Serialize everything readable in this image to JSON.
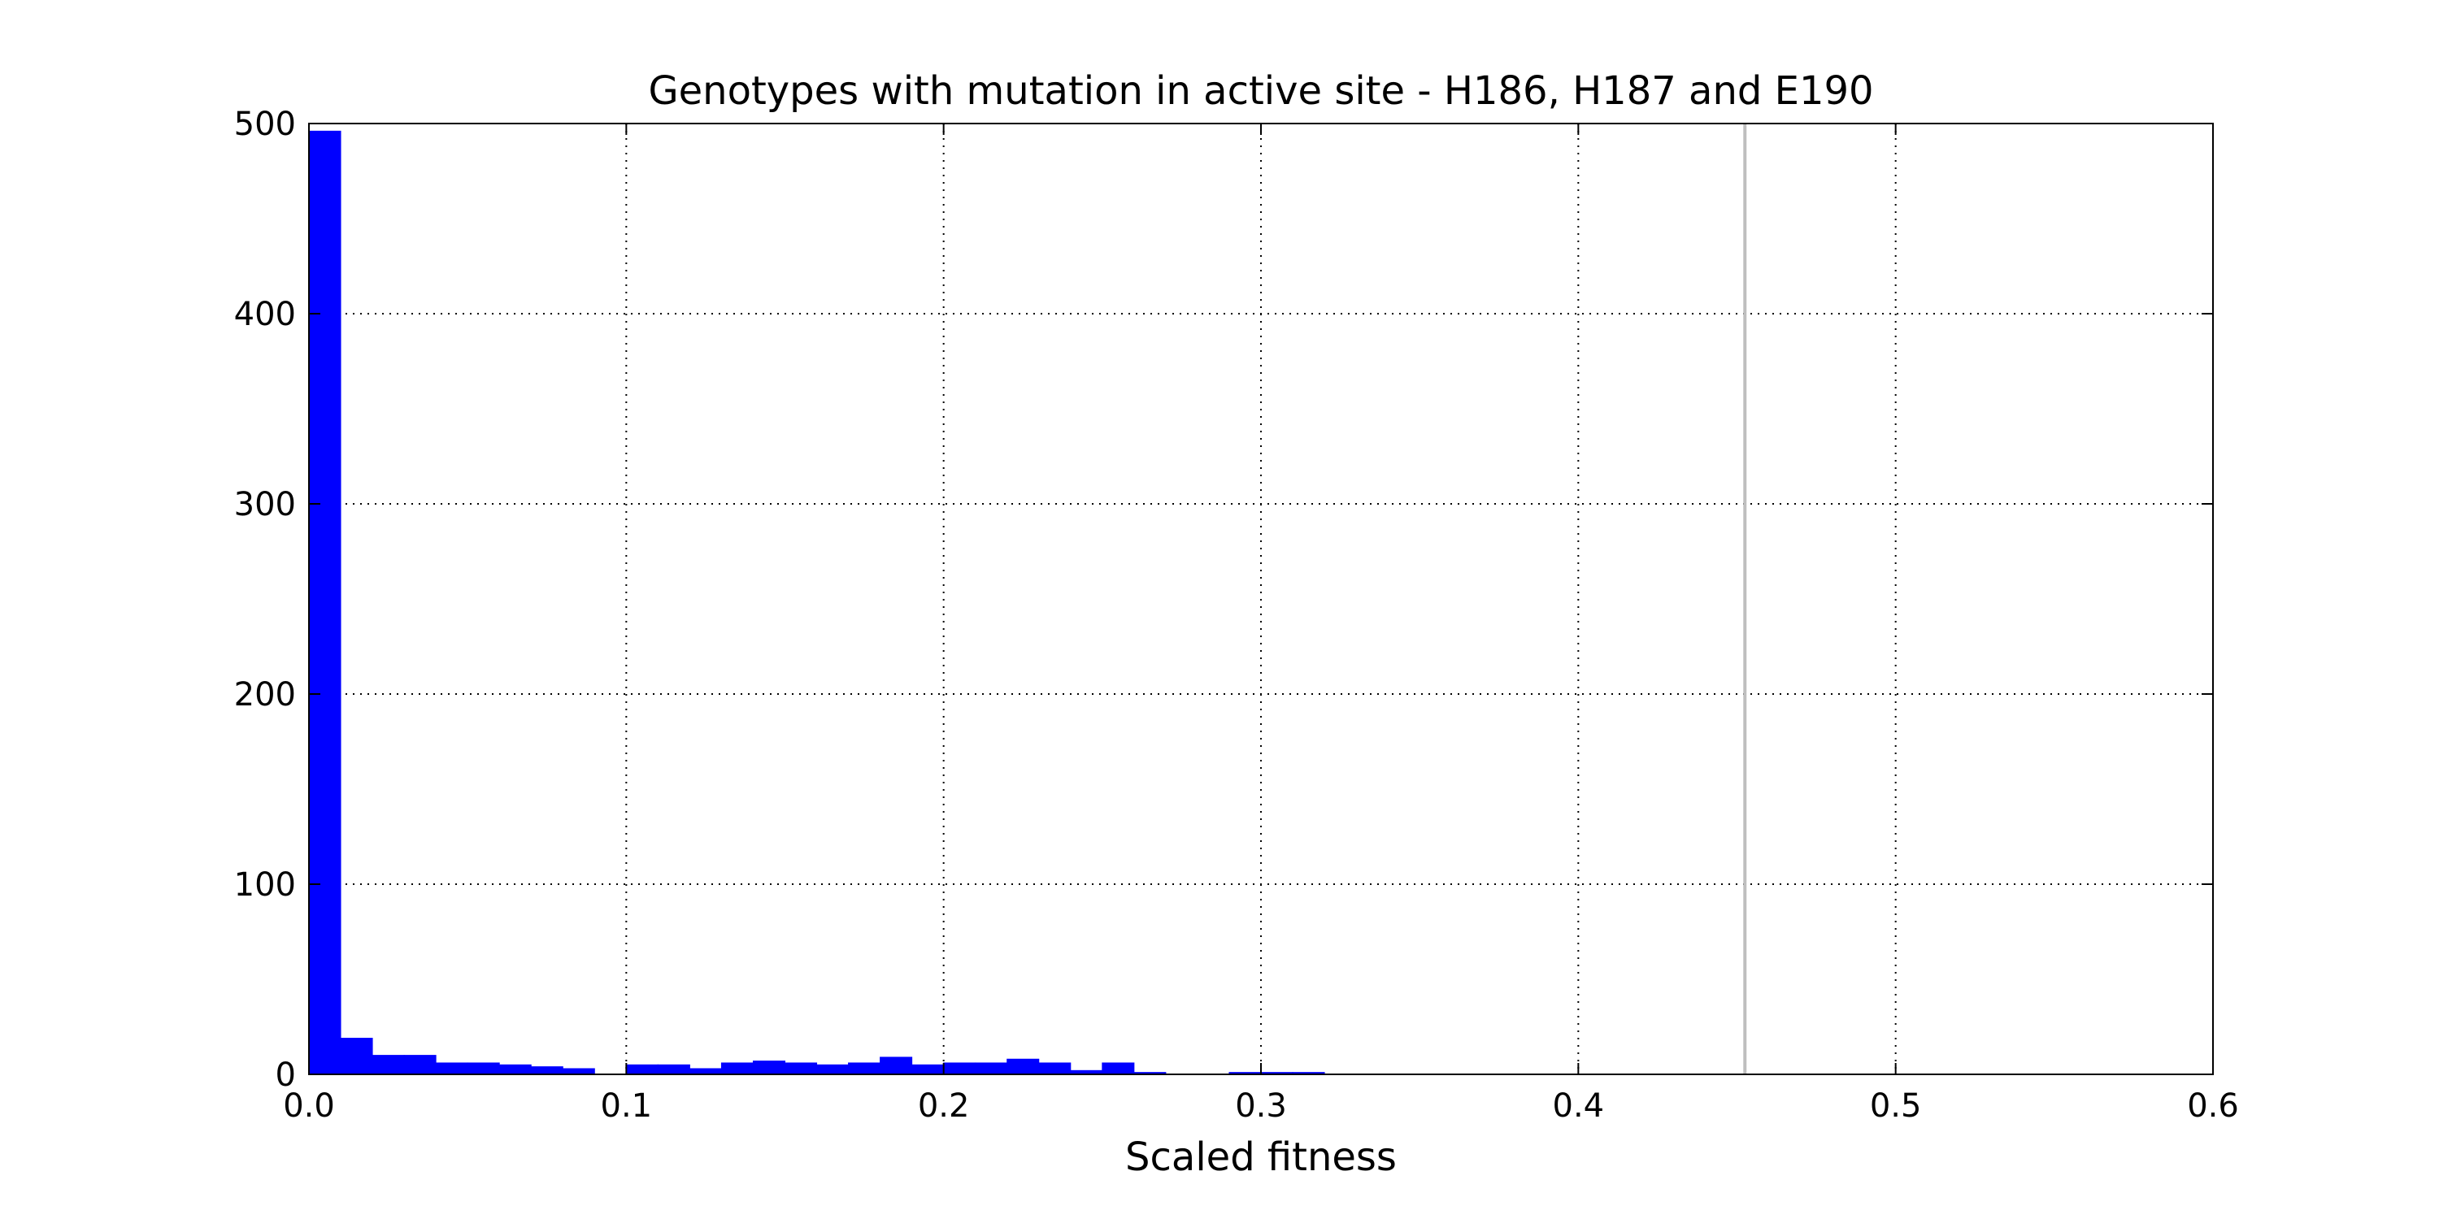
{
  "chart_data": {
    "type": "bar",
    "title": "Genotypes with mutation in active site - H186, H187 and E190",
    "xlabel": "Scaled fitness",
    "ylabel": "",
    "xlim": [
      0.0,
      0.6
    ],
    "ylim": [
      0,
      500
    ],
    "x_ticks": [
      "0.0",
      "0.1",
      "0.2",
      "0.3",
      "0.4",
      "0.5",
      "0.6"
    ],
    "y_ticks": [
      "0",
      "100",
      "200",
      "300",
      "400",
      "500"
    ],
    "grid": true,
    "grid_style": "dotted",
    "bin_width": 0.01,
    "bin_starts": [
      0.0,
      0.01,
      0.02,
      0.03,
      0.04,
      0.05,
      0.06,
      0.07,
      0.08,
      0.09,
      0.1,
      0.11,
      0.12,
      0.13,
      0.14,
      0.15,
      0.16,
      0.17,
      0.18,
      0.19,
      0.2,
      0.21,
      0.22,
      0.23,
      0.24,
      0.25,
      0.26,
      0.27,
      0.28,
      0.29,
      0.3,
      0.31,
      0.32
    ],
    "counts": [
      496,
      19,
      10,
      10,
      6,
      6,
      5,
      4,
      3,
      0,
      5,
      5,
      3,
      6,
      7,
      6,
      5,
      6,
      9,
      5,
      6,
      6,
      8,
      6,
      2,
      6,
      1,
      0,
      0,
      1,
      1,
      1,
      0
    ],
    "vertical_line_x": 0.4525,
    "colors": {
      "bar": "#0000ff",
      "grid": "#000000",
      "reference_line": "#bfbfbf",
      "axes": "#000000"
    }
  }
}
